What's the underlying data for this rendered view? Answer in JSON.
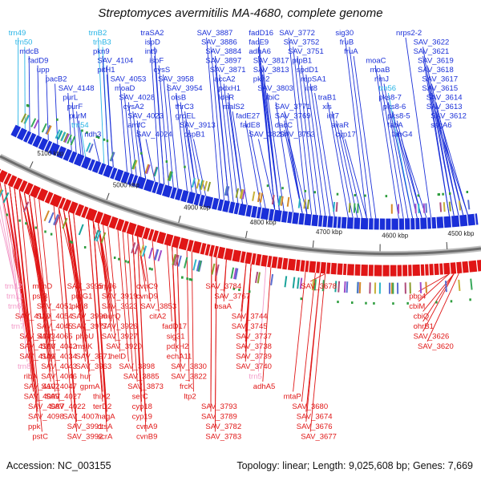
{
  "title": "Streptomyces avermitilis MA-4680, complete genome",
  "accession": "Accession: NC_003155",
  "summary": "Topology: linear; Length: 9,025,608 bp; Genes: 7,669",
  "colors": {
    "forward": "#1a2fd8",
    "reverse": "#e01616",
    "trna": "#27b4e6",
    "trna_reverse": "#f39ac8",
    "backbone": "#888888"
  },
  "scale_ticks": [
    {
      "label": "5100 kbp",
      "t": 0.06
    },
    {
      "label": "5000 kbp",
      "t": 0.22
    },
    {
      "label": "4900 kbp",
      "t": 0.37
    },
    {
      "label": "4800 kbp",
      "t": 0.51
    },
    {
      "label": "4700 kbp",
      "t": 0.65
    },
    {
      "label": "4600 kbp",
      "t": 0.79
    },
    {
      "label": "4500 kbp",
      "t": 0.93
    }
  ],
  "top_labels": [
    {
      "text": "trn49",
      "kind": "trna",
      "t": 0.005
    },
    {
      "text": "mdcB",
      "kind": "gene",
      "t": 0.03
    },
    {
      "text": "fadD9",
      "kind": "gene",
      "t": 0.05
    },
    {
      "text": "trn50",
      "kind": "trna",
      "t": 0.02
    },
    {
      "text": "upp",
      "kind": "gene",
      "t": 0.07
    },
    {
      "text": "pacB2",
      "kind": "gene",
      "t": 0.09
    },
    {
      "text": "SAV_4148",
      "kind": "gene",
      "t": 0.12
    },
    {
      "text": "purL",
      "kind": "gene",
      "t": 0.13
    },
    {
      "text": "purF",
      "kind": "gene",
      "t": 0.14
    },
    {
      "text": "purM",
      "kind": "gene",
      "t": 0.145
    },
    {
      "text": "trn54",
      "kind": "trna",
      "t": 0.15
    },
    {
      "text": "ndh3",
      "kind": "gene",
      "t": 0.18
    },
    {
      "text": "trnB2",
      "kind": "trna",
      "t": 0.19
    },
    {
      "text": "trnB3",
      "kind": "trna",
      "t": 0.2
    },
    {
      "text": "SAV_4104",
      "kind": "gene",
      "t": 0.21
    },
    {
      "text": "pkn9",
      "kind": "gene",
      "t": 0.2
    },
    {
      "text": "pitH1",
      "kind": "gene",
      "t": 0.21
    },
    {
      "text": "SAV_4053",
      "kind": "gene",
      "t": 0.24
    },
    {
      "text": "moaD",
      "kind": "gene",
      "t": 0.25
    },
    {
      "text": "SAV_4028",
      "kind": "gene",
      "t": 0.26
    },
    {
      "text": "cysA2",
      "kind": "gene",
      "t": 0.27
    },
    {
      "text": "SAV_4023",
      "kind": "gene",
      "t": 0.28
    },
    {
      "text": "amfC",
      "kind": "gene",
      "t": 0.28
    },
    {
      "text": "SAV_4024",
      "kind": "gene",
      "t": 0.3
    },
    {
      "text": "traSA2",
      "kind": "gene",
      "t": 0.31
    },
    {
      "text": "ispD",
      "kind": "gene",
      "t": 0.32
    },
    {
      "text": "int9",
      "kind": "gene",
      "t": 0.32
    },
    {
      "text": "ispF",
      "kind": "gene",
      "t": 0.33
    },
    {
      "text": "SAV_3958",
      "kind": "gene",
      "t": 0.35
    },
    {
      "text": "cysS",
      "kind": "gene",
      "t": 0.34
    },
    {
      "text": "SAV_3954",
      "kind": "gene",
      "t": 0.37
    },
    {
      "text": "otsB",
      "kind": "gene",
      "t": 0.38
    },
    {
      "text": "thrC3",
      "kind": "gene",
      "t": 0.39
    },
    {
      "text": "SAV_3913",
      "kind": "gene",
      "t": 0.4
    },
    {
      "text": "groEL",
      "kind": "gene",
      "t": 0.39
    },
    {
      "text": "cspB1",
      "kind": "gene",
      "t": 0.41
    },
    {
      "text": "SAV_3887",
      "kind": "gene",
      "t": 0.44
    },
    {
      "text": "SAV_3886",
      "kind": "gene",
      "t": 0.45
    },
    {
      "text": "SAV_3884",
      "kind": "gene",
      "t": 0.46
    },
    {
      "text": "SAV_3871",
      "kind": "gene",
      "t": 0.47
    },
    {
      "text": "SAV_3897",
      "kind": "gene",
      "t": 0.46
    },
    {
      "text": "accA2",
      "kind": "gene",
      "t": 0.48
    },
    {
      "text": "pdxH1",
      "kind": "gene",
      "t": 0.49
    },
    {
      "text": "ideR",
      "kind": "gene",
      "t": 0.49
    },
    {
      "text": "malS2",
      "kind": "gene",
      "t": 0.5
    },
    {
      "text": "fadE27",
      "kind": "gene",
      "t": 0.53
    },
    {
      "text": "fadE8",
      "kind": "gene",
      "t": 0.54
    },
    {
      "text": "SAV_3820",
      "kind": "gene",
      "t": 0.56
    },
    {
      "text": "SAV_3817",
      "kind": "gene",
      "t": 0.57
    },
    {
      "text": "SAV_3813",
      "kind": "gene",
      "t": 0.57
    },
    {
      "text": "fadD16",
      "kind": "gene",
      "t": 0.56
    },
    {
      "text": "fadE9",
      "kind": "gene",
      "t": 0.56
    },
    {
      "text": "adhA6",
      "kind": "gene",
      "t": 0.56
    },
    {
      "text": "pkn2",
      "kind": "gene",
      "t": 0.57
    },
    {
      "text": "SAV_3803",
      "kind": "gene",
      "t": 0.58
    },
    {
      "text": "fbiC",
      "kind": "gene",
      "t": 0.6
    },
    {
      "text": "SAV_3771",
      "kind": "gene",
      "t": 0.62
    },
    {
      "text": "SAV_3753",
      "kind": "gene",
      "t": 0.63
    },
    {
      "text": "SAV_3752",
      "kind": "gene",
      "t": 0.64
    },
    {
      "text": "SAV_3751",
      "kind": "gene",
      "t": 0.65
    },
    {
      "text": "SAV_3769",
      "kind": "gene",
      "t": 0.62
    },
    {
      "text": "dacC",
      "kind": "gene",
      "t": 0.62
    },
    {
      "text": "SAV_3772",
      "kind": "gene",
      "t": 0.63
    },
    {
      "text": "ptpB1",
      "kind": "gene",
      "t": 0.66
    },
    {
      "text": "spdD1",
      "kind": "gene",
      "t": 0.67
    },
    {
      "text": "repSA1",
      "kind": "gene",
      "t": 0.68
    },
    {
      "text": "int8",
      "kind": "gene",
      "t": 0.69
    },
    {
      "text": "traB1",
      "kind": "gene",
      "t": 0.72
    },
    {
      "text": "xis",
      "kind": "gene",
      "t": 0.73
    },
    {
      "text": "int7",
      "kind": "gene",
      "t": 0.74
    },
    {
      "text": "avaR",
      "kind": "gene",
      "t": 0.75
    },
    {
      "text": "cyp17",
      "kind": "gene",
      "t": 0.76
    },
    {
      "text": "sig30",
      "kind": "gene",
      "t": 0.76
    },
    {
      "text": "fruB",
      "kind": "gene",
      "t": 0.77
    },
    {
      "text": "fruA",
      "kind": "gene",
      "t": 0.78
    },
    {
      "text": "moaC",
      "kind": "gene",
      "t": 0.83
    },
    {
      "text": "moaB",
      "kind": "gene",
      "t": 0.84
    },
    {
      "text": "rimJ",
      "kind": "gene",
      "t": 0.85
    },
    {
      "text": "trn56",
      "kind": "trna",
      "t": 0.86
    },
    {
      "text": "pks8-7",
      "kind": "gene",
      "t": 0.86
    },
    {
      "text": "pks8-6",
      "kind": "gene",
      "t": 0.87
    },
    {
      "text": "pks8-5",
      "kind": "gene",
      "t": 0.88
    },
    {
      "text": "fabA",
      "kind": "gene",
      "t": 0.88
    },
    {
      "text": "fabG4",
      "kind": "gene",
      "t": 0.89
    },
    {
      "text": "nrps2-2",
      "kind": "gene",
      "t": 0.9
    },
    {
      "text": "SAV_3622",
      "kind": "gene",
      "t": 0.94
    },
    {
      "text": "SAV_3621",
      "kind": "gene",
      "t": 0.94
    },
    {
      "text": "SAV_3619",
      "kind": "gene",
      "t": 0.95
    },
    {
      "text": "SAV_3618",
      "kind": "gene",
      "t": 0.95
    },
    {
      "text": "SAV_3617",
      "kind": "gene",
      "t": 0.96
    },
    {
      "text": "SAV_3615",
      "kind": "gene",
      "t": 0.96
    },
    {
      "text": "SAV_3614",
      "kind": "gene",
      "t": 0.97
    },
    {
      "text": "SAV_3613",
      "kind": "gene",
      "t": 0.97
    },
    {
      "text": "SAV_3612",
      "kind": "gene",
      "t": 0.98
    },
    {
      "text": "ssgA6",
      "kind": "gene",
      "t": 0.98
    }
  ],
  "bottom_labels": [
    {
      "text": "trn12",
      "kind": "trna",
      "t": 0.0
    },
    {
      "text": "trn11",
      "kind": "trna",
      "t": 0.01
    },
    {
      "text": "trn6",
      "kind": "trna",
      "t": 0.02
    },
    {
      "text": "trn7",
      "kind": "trna",
      "t": 0.03
    },
    {
      "text": "trn8",
      "kind": "trna",
      "t": 0.04
    },
    {
      "text": "SAV_4103",
      "kind": "gene",
      "t": 0.03
    },
    {
      "text": "ribA",
      "kind": "gene",
      "t": 0.04
    },
    {
      "text": "SAV_4087",
      "kind": "gene",
      "t": 0.05
    },
    {
      "text": "SAV_4098",
      "kind": "gene",
      "t": 0.05
    },
    {
      "text": "SAV_4102",
      "kind": "gene",
      "t": 0.04
    },
    {
      "text": "SAV_4106",
      "kind": "gene",
      "t": 0.03
    },
    {
      "text": "SAV_4110",
      "kind": "gene",
      "t": 0.02
    },
    {
      "text": "SAV_4051",
      "kind": "gene",
      "t": 0.07
    },
    {
      "text": "SAV_4054",
      "kind": "gene",
      "t": 0.07
    },
    {
      "text": "SAV_4042",
      "kind": "gene",
      "t": 0.08
    },
    {
      "text": "pstC",
      "kind": "gene",
      "t": 0.06
    },
    {
      "text": "SAV_4034",
      "kind": "gene",
      "t": 0.08
    },
    {
      "text": "SAV_4099",
      "kind": "gene",
      "t": 0.04
    },
    {
      "text": "mshD",
      "kind": "gene",
      "t": 0.06
    },
    {
      "text": "SAV_4045",
      "kind": "gene",
      "t": 0.07
    },
    {
      "text": "ppk",
      "kind": "gene",
      "t": 0.05
    },
    {
      "text": "SAV_4101",
      "kind": "gene",
      "t": 0.03
    },
    {
      "text": "SAV_4027",
      "kind": "gene",
      "t": 0.09
    },
    {
      "text": "SAV_4043",
      "kind": "gene",
      "t": 0.08
    },
    {
      "text": "pstB",
      "kind": "gene",
      "t": 0.06
    },
    {
      "text": "SAV_4022",
      "kind": "gene",
      "t": 0.1
    },
    {
      "text": "SAV_4046",
      "kind": "gene",
      "t": 0.08
    },
    {
      "text": "SAV_4047",
      "kind": "gene",
      "t": 0.08
    },
    {
      "text": "SAV_4065",
      "kind": "gene",
      "t": 0.07
    },
    {
      "text": "SAV_3991",
      "kind": "gene",
      "t": 0.14
    },
    {
      "text": "prpG1",
      "kind": "gene",
      "t": 0.15
    },
    {
      "text": "phoU",
      "kind": "gene",
      "t": 0.16
    },
    {
      "text": "pkn8",
      "kind": "gene",
      "t": 0.15
    },
    {
      "text": "SAV_4007",
      "kind": "gene",
      "t": 0.13
    },
    {
      "text": "msiK",
      "kind": "gene",
      "t": 0.16
    },
    {
      "text": "hur",
      "kind": "gene",
      "t": 0.17
    },
    {
      "text": "SAV_3990",
      "kind": "gene",
      "t": 0.15
    },
    {
      "text": "SAV_3971",
      "kind": "gene",
      "t": 0.16
    },
    {
      "text": "SAV_3977",
      "kind": "gene",
      "t": 0.15
    },
    {
      "text": "SAV_3963",
      "kind": "gene",
      "t": 0.16
    },
    {
      "text": "gpmA",
      "kind": "gene",
      "t": 0.17
    },
    {
      "text": "SAV_3992",
      "kind": "gene",
      "t": 0.14
    },
    {
      "text": "SAV_3995",
      "kind": "gene",
      "t": 0.14
    },
    {
      "text": "thiX2",
      "kind": "gene",
      "t": 0.2
    },
    {
      "text": "nagA",
      "kind": "gene",
      "t": 0.21
    },
    {
      "text": "SAV_3919",
      "kind": "gene",
      "t": 0.22
    },
    {
      "text": "otsA",
      "kind": "gene",
      "t": 0.21
    },
    {
      "text": "SAV_3920",
      "kind": "gene",
      "t": 0.23
    },
    {
      "text": "SAV_3923",
      "kind": "gene",
      "t": 0.22
    },
    {
      "text": "scrA",
      "kind": "gene",
      "t": 0.21
    },
    {
      "text": "murQ",
      "kind": "gene",
      "t": 0.22
    },
    {
      "text": "terD2",
      "kind": "gene",
      "t": 0.2
    },
    {
      "text": "SAV_3926",
      "kind": "gene",
      "t": 0.22
    },
    {
      "text": "SAV_3927",
      "kind": "gene",
      "t": 0.22
    },
    {
      "text": "prpJ6",
      "kind": "gene",
      "t": 0.21
    },
    {
      "text": "helD",
      "kind": "gene",
      "t": 0.24
    },
    {
      "text": "SAV_3898",
      "kind": "gene",
      "t": 0.26
    },
    {
      "text": "SAV_3873",
      "kind": "gene",
      "t": 0.28
    },
    {
      "text": "cvnA9",
      "kind": "gene",
      "t": 0.3
    },
    {
      "text": "cvnB9",
      "kind": "gene",
      "t": 0.3
    },
    {
      "text": "serC",
      "kind": "gene",
      "t": 0.29
    },
    {
      "text": "SAV_3853",
      "kind": "gene",
      "t": 0.31
    },
    {
      "text": "cvnC9",
      "kind": "gene",
      "t": 0.3
    },
    {
      "text": "cvnD9",
      "kind": "gene",
      "t": 0.3
    },
    {
      "text": "cyp18",
      "kind": "gene",
      "t": 0.29
    },
    {
      "text": "cyp19",
      "kind": "gene",
      "t": 0.29
    },
    {
      "text": "SAV_3885",
      "kind": "gene",
      "t": 0.27
    },
    {
      "text": "citA2",
      "kind": "gene",
      "t": 0.33
    },
    {
      "text": "fadD17",
      "kind": "gene",
      "t": 0.36
    },
    {
      "text": "sig31",
      "kind": "gene",
      "t": 0.37
    },
    {
      "text": "pdxH2",
      "kind": "gene",
      "t": 0.37
    },
    {
      "text": "echA11",
      "kind": "gene",
      "t": 0.37
    },
    {
      "text": "SAV_3830",
      "kind": "gene",
      "t": 0.38
    },
    {
      "text": "SAV_3822",
      "kind": "gene",
      "t": 0.38
    },
    {
      "text": "frcK",
      "kind": "gene",
      "t": 0.4
    },
    {
      "text": "ltp2",
      "kind": "gene",
      "t": 0.41
    },
    {
      "text": "SAV_3793",
      "kind": "gene",
      "t": 0.45
    },
    {
      "text": "SAV_3782",
      "kind": "gene",
      "t": 0.46
    },
    {
      "text": "SAV_3783",
      "kind": "gene",
      "t": 0.46
    },
    {
      "text": "SAV_3789",
      "kind": "gene",
      "t": 0.45
    },
    {
      "text": "SAV_3784",
      "kind": "gene",
      "t": 0.46
    },
    {
      "text": "SAV_3767",
      "kind": "gene",
      "t": 0.48
    },
    {
      "text": "bsaA",
      "kind": "gene",
      "t": 0.48
    },
    {
      "text": "SAV_3744",
      "kind": "gene",
      "t": 0.52
    },
    {
      "text": "SAV_3737",
      "kind": "gene",
      "t": 0.53
    },
    {
      "text": "SAV_3738",
      "kind": "gene",
      "t": 0.53
    },
    {
      "text": "SAV_3739",
      "kind": "gene",
      "t": 0.53
    },
    {
      "text": "SAV_3745",
      "kind": "gene",
      "t": 0.52
    },
    {
      "text": "SAV_3740",
      "kind": "gene",
      "t": 0.53
    },
    {
      "text": "trn5",
      "kind": "trna",
      "t": 0.56
    },
    {
      "text": "adhA5",
      "kind": "gene",
      "t": 0.57
    },
    {
      "text": "SAV_3674",
      "kind": "gene",
      "t": 0.67
    },
    {
      "text": "SAV_3676",
      "kind": "gene",
      "t": 0.67
    },
    {
      "text": "SAV_3677",
      "kind": "gene",
      "t": 0.68
    },
    {
      "text": "SAV_3678",
      "kind": "gene",
      "t": 0.68
    },
    {
      "text": "mtaP",
      "kind": "gene",
      "t": 0.64
    },
    {
      "text": "SAV_3680",
      "kind": "gene",
      "t": 0.66
    },
    {
      "text": "pbp4",
      "kind": "gene",
      "t": 0.93
    },
    {
      "text": "cbiM",
      "kind": "gene",
      "t": 0.93
    },
    {
      "text": "cbiQ",
      "kind": "gene",
      "t": 0.94
    },
    {
      "text": "ohrB1",
      "kind": "gene",
      "t": 0.94
    },
    {
      "text": "SAV_3620",
      "kind": "gene",
      "t": 0.95
    },
    {
      "text": "SAV_3626",
      "kind": "gene",
      "t": 0.94
    }
  ]
}
